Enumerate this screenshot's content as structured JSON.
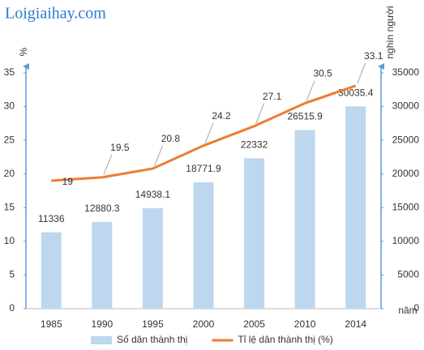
{
  "chart_data": {
    "type": "combo",
    "watermark": "Loigiaihay.com",
    "y_label": "%",
    "y2_label": "nghìn người",
    "x_label": "năm",
    "categories": [
      "1985",
      "1990",
      "1995",
      "2000",
      "2005",
      "2010",
      "2014"
    ],
    "series": [
      {
        "name": "Số dân thành thị",
        "type": "bar",
        "axis": "y2",
        "color": "#bdd7ee",
        "values": [
          11336,
          12880.3,
          14938.1,
          18771.9,
          22332,
          26515.9,
          30035.4
        ]
      },
      {
        "name": "Tỉ lệ dân thành thị (%)",
        "type": "line",
        "axis": "y",
        "color": "#ed7d31",
        "values": [
          19,
          19.5,
          20.8,
          24.2,
          27.1,
          30.5,
          33.1
        ]
      }
    ],
    "ylim": [
      0,
      35
    ],
    "yticks": [
      0,
      5,
      10,
      15,
      20,
      25,
      30,
      35
    ],
    "y2lim": [
      0,
      35000
    ],
    "y2ticks": [
      0,
      5000,
      10000,
      15000,
      20000,
      25000,
      30000,
      35000
    ],
    "legend": "bottom"
  }
}
